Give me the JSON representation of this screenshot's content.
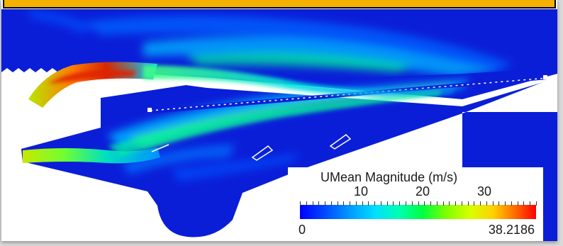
{
  "legend": {
    "title": "UMean Magnitude (m/s)",
    "ticks": [
      "10",
      "20",
      "30"
    ],
    "min": "0",
    "max": "38.2186"
  },
  "colors": {
    "title_bar": "#f4b100",
    "field_low": "#0000ff",
    "field_high": "#ff0000"
  },
  "chart_data": {
    "type": "heatmap",
    "colorbar_title": "UMean Magnitude (m/s)",
    "range": [
      0,
      38.2186
    ],
    "colorbar_ticks": [
      10,
      20,
      30
    ],
    "colormap": "rainbow-blue-to-red"
  }
}
